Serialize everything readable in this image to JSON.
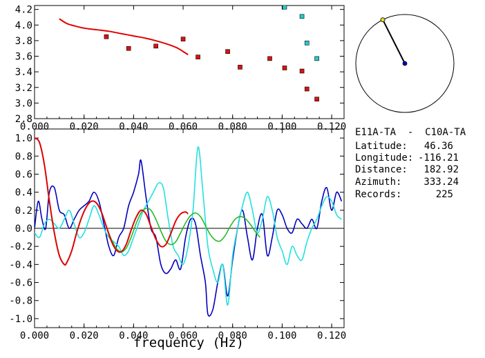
{
  "station_pair": "E11A-TA  -  C10A-TA",
  "info": [
    {
      "label": "Latitude:",
      "value": "46.36"
    },
    {
      "label": "Longitude:",
      "value": "-116.21"
    },
    {
      "label": "Distance:",
      "value": "182.92"
    },
    {
      "label": "Azimuth:",
      "value": "333.24"
    },
    {
      "label": "Records:",
      "value": "225"
    }
  ],
  "colors": {
    "red": "#e00000",
    "square_red": "#dd1111",
    "square_cyan": "#22cccc",
    "blue": "#0000bb",
    "cyan": "#22e0e0",
    "green": "#22bb22",
    "axis": "#000000"
  },
  "azimuth_deg": 333.24,
  "chart_data": [
    {
      "type": "scatter",
      "title": "",
      "xlabel": "",
      "ylabel": "",
      "xlim": [
        0.0,
        0.125
      ],
      "ylim": [
        2.8,
        4.25
      ],
      "x_ticks": [
        "0.000",
        "0.020",
        "0.040",
        "0.060",
        "0.080",
        "0.100",
        "0.120"
      ],
      "y_ticks": [
        "2.8",
        "3.0",
        "3.2",
        "3.4",
        "3.6",
        "3.8",
        "4.0",
        "4.2"
      ],
      "series": [
        {
          "kind": "line",
          "color": "red",
          "x": [
            0.01,
            0.013,
            0.016,
            0.02,
            0.025,
            0.03,
            0.035,
            0.04,
            0.045,
            0.05,
            0.055,
            0.058,
            0.06,
            0.062
          ],
          "y": [
            4.08,
            4.02,
            3.99,
            3.96,
            3.94,
            3.92,
            3.89,
            3.86,
            3.83,
            3.79,
            3.74,
            3.7,
            3.66,
            3.62
          ]
        },
        {
          "kind": "points",
          "color": "square_red",
          "x": [
            0.029,
            0.038,
            0.049,
            0.06,
            0.066,
            0.078,
            0.083,
            0.095,
            0.101,
            0.108,
            0.11,
            0.114
          ],
          "y": [
            3.85,
            3.7,
            3.73,
            3.82,
            3.59,
            3.66,
            3.46,
            3.57,
            3.45,
            3.41,
            3.18,
            3.05
          ]
        },
        {
          "kind": "points",
          "color": "square_cyan",
          "x": [
            0.101,
            0.108,
            0.11,
            0.114
          ],
          "y": [
            4.23,
            4.11,
            3.77,
            3.57
          ]
        }
      ]
    },
    {
      "type": "line",
      "title": "",
      "xlabel": "frequency (Hz)",
      "ylabel": "",
      "xlim": [
        0.0,
        0.125
      ],
      "ylim": [
        -1.1,
        1.1
      ],
      "x_ticks": [
        "0.000",
        "0.020",
        "0.040",
        "0.060",
        "0.080",
        "0.100",
        "0.120"
      ],
      "y_ticks": [
        "1.0",
        "0.8",
        "0.6",
        "0.4",
        "0.2",
        "0.0",
        "-0.2",
        "-0.4",
        "-0.6",
        "-0.8",
        "-1.0"
      ],
      "series": [
        {
          "color": "blue",
          "x": [
            0.0,
            0.0015,
            0.003,
            0.0045,
            0.006,
            0.008,
            0.01,
            0.012,
            0.014,
            0.016,
            0.018,
            0.02,
            0.022,
            0.024,
            0.026,
            0.028,
            0.03,
            0.032,
            0.034,
            0.036,
            0.038,
            0.04,
            0.042,
            0.043,
            0.045,
            0.047,
            0.049,
            0.051,
            0.053,
            0.055,
            0.057,
            0.059,
            0.061,
            0.063,
            0.065,
            0.067,
            0.069,
            0.07,
            0.072,
            0.074,
            0.076,
            0.078,
            0.08,
            0.082,
            0.084,
            0.086,
            0.088,
            0.09,
            0.092,
            0.094,
            0.096,
            0.098,
            0.1,
            0.102,
            0.104,
            0.106,
            0.108,
            0.11,
            0.112,
            0.114,
            0.116,
            0.118,
            0.12,
            0.122,
            0.124
          ],
          "y": [
            0.0,
            0.3,
            0.1,
            0.0,
            0.4,
            0.45,
            0.2,
            0.15,
            0.0,
            0.1,
            0.2,
            0.25,
            0.3,
            0.4,
            0.3,
            0.05,
            -0.2,
            -0.3,
            -0.1,
            0.0,
            0.25,
            0.4,
            0.6,
            0.75,
            0.35,
            0.0,
            -0.1,
            -0.4,
            -0.5,
            -0.45,
            -0.35,
            -0.45,
            -0.1,
            0.1,
            0.05,
            -0.3,
            -0.6,
            -0.95,
            -0.9,
            -0.6,
            -0.4,
            -0.75,
            -0.35,
            0.0,
            0.2,
            -0.1,
            -0.35,
            0.0,
            0.15,
            -0.3,
            -0.1,
            0.2,
            0.15,
            0.0,
            -0.05,
            0.1,
            0.05,
            0.0,
            0.1,
            0.0,
            0.3,
            0.45,
            0.2,
            0.4,
            0.3
          ]
        },
        {
          "color": "cyan",
          "x": [
            0.0,
            0.002,
            0.004,
            0.006,
            0.008,
            0.01,
            0.012,
            0.014,
            0.016,
            0.018,
            0.02,
            0.022,
            0.024,
            0.026,
            0.028,
            0.03,
            0.032,
            0.034,
            0.036,
            0.038,
            0.04,
            0.042,
            0.044,
            0.046,
            0.048,
            0.05,
            0.052,
            0.054,
            0.056,
            0.058,
            0.06,
            0.062,
            0.064,
            0.066,
            0.068,
            0.07,
            0.072,
            0.074,
            0.076,
            0.078,
            0.08,
            0.082,
            0.084,
            0.086,
            0.088,
            0.09,
            0.092,
            0.094,
            0.096,
            0.098,
            0.1,
            0.102,
            0.104,
            0.106,
            0.108,
            0.11,
            0.112,
            0.114,
            0.116,
            0.118,
            0.12,
            0.122,
            0.124
          ],
          "y": [
            -0.05,
            -0.1,
            0.05,
            0.1,
            0.05,
            0.0,
            0.1,
            0.2,
            0.05,
            -0.1,
            -0.05,
            0.1,
            0.25,
            0.15,
            0.0,
            -0.1,
            -0.15,
            -0.2,
            -0.3,
            -0.25,
            -0.1,
            0.05,
            0.2,
            0.3,
            0.4,
            0.5,
            0.45,
            0.1,
            -0.2,
            -0.3,
            -0.4,
            -0.2,
            0.2,
            0.9,
            0.4,
            -0.2,
            -0.45,
            -0.6,
            -0.4,
            -0.85,
            -0.3,
            0.0,
            0.25,
            0.4,
            0.2,
            -0.05,
            0.1,
            0.35,
            0.2,
            -0.1,
            -0.25,
            -0.4,
            -0.2,
            -0.3,
            -0.35,
            -0.15,
            0.0,
            0.1,
            0.25,
            0.35,
            0.3,
            0.15,
            0.1
          ]
        },
        {
          "color": "green",
          "x": [
            0.0,
            0.002,
            0.004,
            0.006,
            0.008,
            0.01,
            0.012,
            0.013,
            0.015,
            0.017,
            0.019,
            0.021,
            0.023,
            0.025,
            0.027,
            0.029,
            0.031,
            0.033,
            0.035,
            0.037,
            0.039,
            0.041,
            0.043,
            0.045,
            0.047,
            0.049,
            0.051,
            0.053,
            0.055,
            0.057,
            0.059,
            0.061,
            0.063,
            0.065,
            0.067,
            0.069,
            0.071,
            0.073,
            0.075,
            0.077,
            0.079,
            0.081,
            0.083,
            0.085,
            0.087,
            0.089,
            0.091
          ],
          "y": [
            1.0,
            0.95,
            0.7,
            0.3,
            -0.05,
            -0.3,
            -0.4,
            -0.38,
            -0.25,
            -0.05,
            0.12,
            0.24,
            0.3,
            0.28,
            0.18,
            0.02,
            -0.12,
            -0.22,
            -0.26,
            -0.22,
            -0.1,
            0.05,
            0.17,
            0.22,
            0.2,
            0.1,
            -0.03,
            -0.14,
            -0.18,
            -0.15,
            -0.05,
            0.06,
            0.14,
            0.17,
            0.13,
            0.03,
            -0.07,
            -0.13,
            -0.14,
            -0.08,
            0.02,
            0.1,
            0.13,
            0.11,
            0.05,
            -0.03,
            -0.1
          ]
        },
        {
          "color": "red",
          "x": [
            0.0,
            0.002,
            0.004,
            0.006,
            0.008,
            0.01,
            0.012,
            0.013,
            0.015,
            0.017,
            0.019,
            0.021,
            0.023,
            0.025,
            0.027,
            0.029,
            0.031,
            0.033,
            0.035,
            0.037,
            0.039,
            0.041,
            0.043,
            0.045,
            0.047,
            0.049,
            0.051,
            0.053,
            0.055,
            0.057,
            0.059,
            0.061,
            0.062
          ],
          "y": [
            1.0,
            0.95,
            0.7,
            0.3,
            -0.05,
            -0.3,
            -0.4,
            -0.38,
            -0.25,
            -0.05,
            0.12,
            0.24,
            0.3,
            0.28,
            0.18,
            0.02,
            -0.14,
            -0.24,
            -0.26,
            -0.18,
            -0.02,
            0.12,
            0.2,
            0.16,
            0.02,
            -0.12,
            -0.2,
            -0.18,
            -0.06,
            0.08,
            0.16,
            0.18,
            0.16
          ]
        }
      ]
    }
  ]
}
